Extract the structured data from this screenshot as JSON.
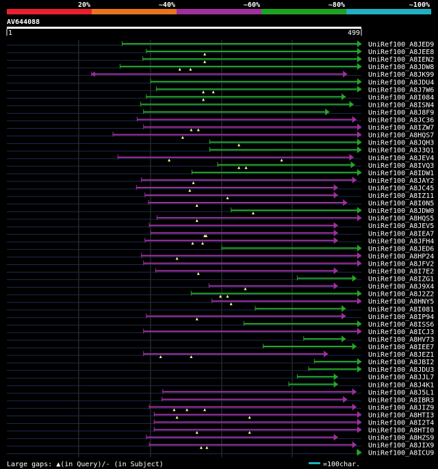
{
  "chart_data": {
    "type": "alignment-overview",
    "title": "AV644088",
    "query_start": "1",
    "query_end": "499",
    "query_length": 499,
    "identity_scale": [
      {
        "label": "20%",
        "color": "#e8202e"
      },
      {
        "label": "~40%",
        "color": "#e8741e"
      },
      {
        "label": "~60%",
        "color": "#a0309e"
      },
      {
        "label": "~80%",
        "color": "#20a020"
      },
      {
        "label": "~100%",
        "color": "#20b0c0"
      }
    ],
    "legend": {
      "gaps_text": "Large gaps: ▲(in Query)/- (in Subject)",
      "scale_text": "=100char."
    },
    "hits": [
      {
        "name": "UniRef100_A8JED9",
        "color": "green",
        "start": 163,
        "end": 499,
        "arrow_start": false,
        "arrow_end": true,
        "gaps": []
      },
      {
        "name": "UniRef100_A8JEE8",
        "color": "green",
        "start": 197,
        "end": 499,
        "arrow_start": false,
        "arrow_end": true,
        "gaps": [
          279
        ]
      },
      {
        "name": "UniRef100_A8IEN2",
        "color": "green",
        "start": 192,
        "end": 499,
        "arrow_start": false,
        "arrow_end": true,
        "gaps": [
          279
        ]
      },
      {
        "name": "UniRef100_A8JDW8",
        "color": "green",
        "start": 160,
        "end": 499,
        "arrow_start": false,
        "arrow_end": true,
        "gaps": [
          244,
          259
        ]
      },
      {
        "name": "UniRef100_A8JK99",
        "color": "magenta",
        "start": 120,
        "end": 479,
        "arrow_start": true,
        "arrow_end": true,
        "gaps": []
      },
      {
        "name": "UniRef100_A8JDU4",
        "color": "green",
        "start": 203,
        "end": 499,
        "arrow_start": false,
        "arrow_end": true,
        "gaps": []
      },
      {
        "name": "UniRef100_A8J7W6",
        "color": "green",
        "start": 211,
        "end": 499,
        "arrow_start": false,
        "arrow_end": true,
        "gaps": [
          277,
          291
        ]
      },
      {
        "name": "UniRef100_A8I084",
        "color": "green",
        "start": 197,
        "end": 477,
        "arrow_start": false,
        "arrow_end": true,
        "gaps": [
          277
        ]
      },
      {
        "name": "UniRef100_A8ISN4",
        "color": "green",
        "start": 189,
        "end": 488,
        "arrow_start": false,
        "arrow_end": true,
        "gaps": []
      },
      {
        "name": "UniRef100_A8J8F9",
        "color": "green",
        "start": 193,
        "end": 454,
        "arrow_start": false,
        "arrow_end": true,
        "gaps": []
      },
      {
        "name": "UniRef100_A8JC36",
        "color": "magenta",
        "start": 184,
        "end": 492,
        "arrow_start": false,
        "arrow_end": true,
        "gaps": []
      },
      {
        "name": "UniRef100_A8IZW7",
        "color": "magenta",
        "start": 193,
        "end": 499,
        "arrow_start": false,
        "arrow_end": true,
        "gaps": [
          260,
          270
        ]
      },
      {
        "name": "UniRef100_A8HQS7",
        "color": "magenta",
        "start": 150,
        "end": 499,
        "arrow_start": false,
        "arrow_end": true,
        "gaps": [
          248
        ]
      },
      {
        "name": "UniRef100_A8JQH3",
        "color": "green",
        "start": 286,
        "end": 499,
        "arrow_start": false,
        "arrow_end": true,
        "gaps": [
          327
        ]
      },
      {
        "name": "UniRef100_A8J3Q1",
        "color": "green",
        "start": 286,
        "end": 499,
        "arrow_start": false,
        "arrow_end": true,
        "gaps": []
      },
      {
        "name": "UniRef100_A8JEV4",
        "color": "magenta",
        "start": 157,
        "end": 488,
        "arrow_start": false,
        "arrow_end": true,
        "gaps": [
          229,
          387
        ]
      },
      {
        "name": "UniRef100_A8IVQ3",
        "color": "green",
        "start": 297,
        "end": 490,
        "arrow_start": false,
        "arrow_end": true,
        "gaps": [
          327,
          337
        ]
      },
      {
        "name": "UniRef100_A8IDW1",
        "color": "green",
        "start": 261,
        "end": 499,
        "arrow_start": false,
        "arrow_end": true,
        "gaps": []
      },
      {
        "name": "UniRef100_A8JAY2",
        "color": "magenta",
        "start": 190,
        "end": 492,
        "arrow_start": false,
        "arrow_end": true,
        "gaps": [
          263
        ]
      },
      {
        "name": "UniRef100_A8JC45",
        "color": "magenta",
        "start": 183,
        "end": 466,
        "arrow_start": false,
        "arrow_end": true,
        "gaps": [
          258
        ]
      },
      {
        "name": "UniRef100_A8IZ11",
        "color": "magenta",
        "start": 195,
        "end": 466,
        "arrow_start": false,
        "arrow_end": true,
        "gaps": [
          311
        ]
      },
      {
        "name": "UniRef100_A8I0N5",
        "color": "magenta",
        "start": 200,
        "end": 479,
        "arrow_start": false,
        "arrow_end": true,
        "gaps": [
          268
        ]
      },
      {
        "name": "UniRef100_A8JDW0",
        "color": "green",
        "start": 316,
        "end": 499,
        "arrow_start": false,
        "arrow_end": true,
        "gaps": [
          347
        ]
      },
      {
        "name": "UniRef100_A8HQS5",
        "color": "magenta",
        "start": 212,
        "end": 499,
        "arrow_start": false,
        "arrow_end": true,
        "gaps": [
          268
        ]
      },
      {
        "name": "UniRef100_A8JEV5",
        "color": "magenta",
        "start": 201,
        "end": 466,
        "arrow_start": false,
        "arrow_end": true,
        "gaps": []
      },
      {
        "name": "UniRef100_A8IEA7",
        "color": "magenta",
        "start": 203,
        "end": 466,
        "arrow_start": false,
        "arrow_end": true,
        "gaps": [
          279,
          281
        ]
      },
      {
        "name": "UniRef100_A8JFH4",
        "color": "magenta",
        "start": 195,
        "end": 466,
        "arrow_start": false,
        "arrow_end": true,
        "gaps": [
          262,
          276
        ]
      },
      {
        "name": "UniRef100_A8JED6",
        "color": "green",
        "start": 303,
        "end": 499,
        "arrow_start": false,
        "arrow_end": true,
        "gaps": []
      },
      {
        "name": "UniRef100_A8HP24",
        "color": "magenta",
        "start": 190,
        "end": 499,
        "arrow_start": false,
        "arrow_end": true,
        "gaps": [
          240
        ]
      },
      {
        "name": "UniRef100_A8JFV2",
        "color": "magenta",
        "start": 193,
        "end": 499,
        "arrow_start": false,
        "arrow_end": true,
        "gaps": []
      },
      {
        "name": "UniRef100_A8I7E2",
        "color": "magenta",
        "start": 210,
        "end": 466,
        "arrow_start": false,
        "arrow_end": true,
        "gaps": [
          270
        ]
      },
      {
        "name": "UniRef100_A8IZG1",
        "color": "green",
        "start": 409,
        "end": 492,
        "arrow_start": false,
        "arrow_end": true,
        "gaps": []
      },
      {
        "name": "UniRef100_A8J9X4",
        "color": "magenta",
        "start": 285,
        "end": 466,
        "arrow_start": false,
        "arrow_end": true,
        "gaps": [
          336
        ]
      },
      {
        "name": "UniRef100_A8J2Z2",
        "color": "green",
        "start": 260,
        "end": 499,
        "arrow_start": false,
        "arrow_end": true,
        "gaps": [
          301,
          311
        ]
      },
      {
        "name": "UniRef100_A8HNY5",
        "color": "magenta",
        "start": 289,
        "end": 499,
        "arrow_start": false,
        "arrow_end": true,
        "gaps": [
          316
        ]
      },
      {
        "name": "UniRef100_A8I081",
        "color": "green",
        "start": 350,
        "end": 477,
        "arrow_start": false,
        "arrow_end": true,
        "gaps": []
      },
      {
        "name": "UniRef100_A8IP94",
        "color": "magenta",
        "start": 197,
        "end": 477,
        "arrow_start": false,
        "arrow_end": true,
        "gaps": [
          268
        ]
      },
      {
        "name": "UniRef100_A8ISS6",
        "color": "green",
        "start": 334,
        "end": 499,
        "arrow_start": false,
        "arrow_end": true,
        "gaps": []
      },
      {
        "name": "UniRef100_A8ICJ3",
        "color": "magenta",
        "start": 193,
        "end": 499,
        "arrow_start": false,
        "arrow_end": true,
        "gaps": []
      },
      {
        "name": "UniRef100_A8HV73",
        "color": "green",
        "start": 418,
        "end": 477,
        "arrow_start": false,
        "arrow_end": true,
        "gaps": []
      },
      {
        "name": "UniRef100_A8IEE7",
        "color": "green",
        "start": 361,
        "end": 492,
        "arrow_start": false,
        "arrow_end": true,
        "gaps": []
      },
      {
        "name": "UniRef100_A8JEZ1",
        "color": "magenta",
        "start": 193,
        "end": 452,
        "arrow_start": false,
        "arrow_end": true,
        "gaps": [
          217,
          260
        ]
      },
      {
        "name": "UniRef100_A8JBI2",
        "color": "green",
        "start": 433,
        "end": 499,
        "arrow_start": false,
        "arrow_end": true,
        "gaps": []
      },
      {
        "name": "UniRef100_A8JDU3",
        "color": "green",
        "start": 425,
        "end": 499,
        "arrow_start": false,
        "arrow_end": true,
        "gaps": []
      },
      {
        "name": "UniRef100_A8JJL7",
        "color": "green",
        "start": 409,
        "end": 466,
        "arrow_start": false,
        "arrow_end": true,
        "gaps": []
      },
      {
        "name": "UniRef100_A8J4K1",
        "color": "green",
        "start": 397,
        "end": 466,
        "arrow_start": false,
        "arrow_end": true,
        "gaps": []
      },
      {
        "name": "UniRef100_A8J5L1",
        "color": "magenta",
        "start": 220,
        "end": 492,
        "arrow_start": false,
        "arrow_end": true,
        "gaps": []
      },
      {
        "name": "UniRef100_A8IBR3",
        "color": "magenta",
        "start": 219,
        "end": 479,
        "arrow_start": false,
        "arrow_end": true,
        "gaps": []
      },
      {
        "name": "UniRef100_A8JIZ9",
        "color": "magenta",
        "start": 201,
        "end": 492,
        "arrow_start": false,
        "arrow_end": true,
        "gaps": [
          236,
          254,
          279
        ]
      },
      {
        "name": "UniRef100_A8HTI3",
        "color": "magenta",
        "start": 208,
        "end": 499,
        "arrow_start": false,
        "arrow_end": true,
        "gaps": [
          240,
          342
        ]
      },
      {
        "name": "UniRef100_A8I2T4",
        "color": "magenta",
        "start": 208,
        "end": 499,
        "arrow_start": false,
        "arrow_end": true,
        "gaps": []
      },
      {
        "name": "UniRef100_A8HTI0",
        "color": "magenta",
        "start": 208,
        "end": 499,
        "arrow_start": false,
        "arrow_end": true,
        "gaps": [
          268,
          342
        ]
      },
      {
        "name": "UniRef100_A8HZS9",
        "color": "magenta",
        "start": 197,
        "end": 466,
        "arrow_start": false,
        "arrow_end": true,
        "gaps": []
      },
      {
        "name": "UniRef100_A8JIX9",
        "color": "magenta",
        "start": 201,
        "end": 492,
        "arrow_start": false,
        "arrow_end": true,
        "gaps": [
          274,
          282
        ]
      },
      {
        "name": "UniRef100_A8ICU9",
        "color": "green",
        "start": 493,
        "end": 499,
        "arrow_start": false,
        "arrow_end": true,
        "gaps": []
      }
    ]
  }
}
